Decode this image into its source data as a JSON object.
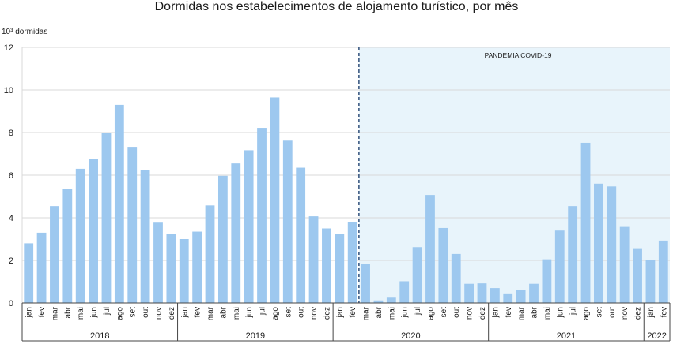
{
  "chart_data": {
    "type": "bar",
    "title": "Dormidas nos estabelecimentos de alojamento turístico, por mês",
    "ylabel": "10³ dormidas",
    "xlabel": "",
    "ylim": [
      0,
      12
    ],
    "yticks": [
      0,
      2,
      4,
      6,
      8,
      10,
      12
    ],
    "grid": true,
    "legend": "none",
    "bar_color": "#9dc8ef",
    "shade_color": "#e8f4fb",
    "annotation": "PANDEMIA COVID-19",
    "years": [
      {
        "label": "2018",
        "months": [
          "jan",
          "fev",
          "mar",
          "abr",
          "mai",
          "jun",
          "jul",
          "ago",
          "set",
          "out",
          "nov",
          "dez"
        ],
        "values": [
          2.8,
          3.3,
          4.55,
          5.35,
          6.3,
          6.75,
          7.97,
          9.3,
          7.33,
          6.25,
          3.77,
          3.25
        ]
      },
      {
        "label": "2019",
        "months": [
          "jan",
          "fev",
          "mar",
          "abr",
          "mai",
          "jun",
          "jul",
          "ago",
          "set",
          "out",
          "nov",
          "dez"
        ],
        "values": [
          3.0,
          3.35,
          4.58,
          5.97,
          6.55,
          7.17,
          8.22,
          9.65,
          7.62,
          6.35,
          4.07,
          3.5
        ]
      },
      {
        "label": "2020",
        "months": [
          "jan",
          "fev",
          "mar",
          "abr",
          "mai",
          "jun",
          "jul",
          "ago",
          "set",
          "out",
          "nov",
          "dez"
        ],
        "values": [
          3.25,
          3.8,
          1.85,
          0.12,
          0.25,
          1.02,
          2.62,
          5.07,
          3.52,
          2.3,
          0.9,
          0.92
        ]
      },
      {
        "label": "2021",
        "months": [
          "jan",
          "fev",
          "mar",
          "abr",
          "mai",
          "jun",
          "jul",
          "ago",
          "set",
          "out",
          "nov",
          "dez"
        ],
        "values": [
          0.7,
          0.45,
          0.62,
          0.9,
          2.05,
          3.4,
          4.55,
          7.52,
          5.6,
          5.47,
          3.57,
          2.57
        ]
      },
      {
        "label": "2022",
        "months": [
          "jan",
          "fev"
        ],
        "values": [
          2.0,
          2.93
        ]
      }
    ]
  }
}
